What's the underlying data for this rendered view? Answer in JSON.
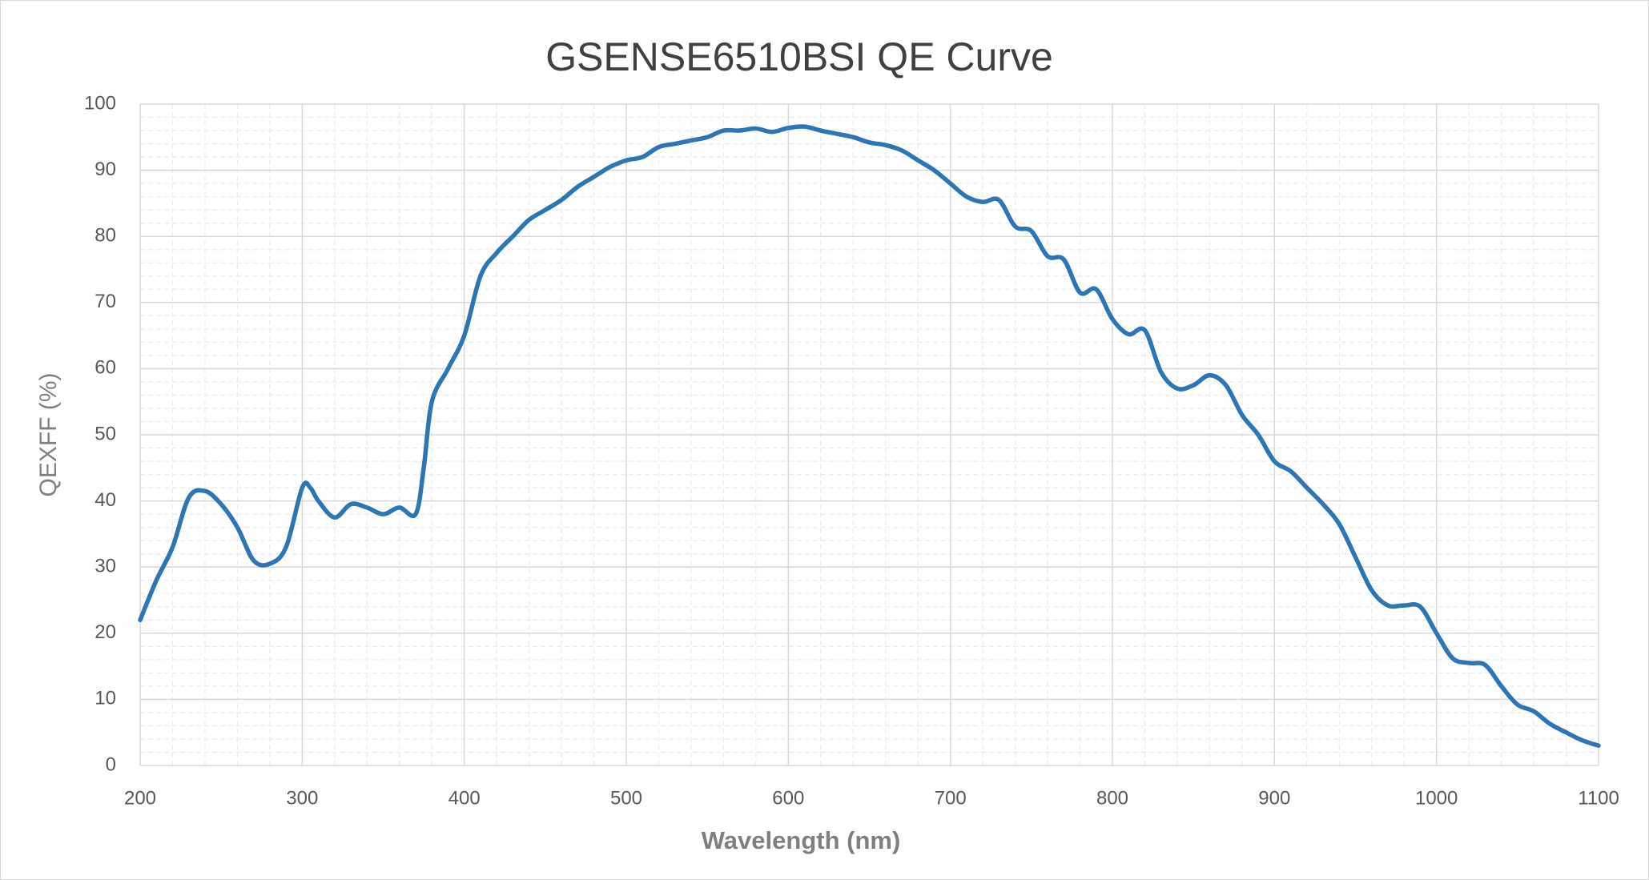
{
  "chart_data": {
    "type": "line",
    "title": "GSENSE6510BSI  QE Curve",
    "x_label": "Wavelength (nm)",
    "y_label": "QEXFF (%)",
    "x": [
      200,
      210,
      220,
      230,
      240,
      250,
      260,
      270,
      280,
      290,
      300,
      305,
      310,
      320,
      330,
      340,
      350,
      360,
      370,
      375,
      380,
      390,
      400,
      410,
      420,
      430,
      440,
      450,
      460,
      470,
      480,
      490,
      500,
      510,
      520,
      530,
      540,
      550,
      560,
      570,
      580,
      590,
      600,
      610,
      620,
      630,
      640,
      650,
      660,
      670,
      680,
      690,
      700,
      710,
      720,
      730,
      740,
      750,
      760,
      770,
      780,
      790,
      800,
      810,
      820,
      830,
      840,
      850,
      860,
      870,
      880,
      890,
      900,
      910,
      920,
      930,
      940,
      950,
      960,
      970,
      980,
      990,
      1000,
      1010,
      1020,
      1030,
      1040,
      1050,
      1060,
      1070,
      1080,
      1090,
      1100
    ],
    "series": [
      {
        "name": "QE",
        "color": "#2e75b6",
        "values": [
          22,
          28,
          33,
          40.5,
          41.5,
          39.5,
          36,
          31,
          30.5,
          33,
          42,
          42,
          40,
          37.5,
          39.5,
          39,
          38,
          39,
          38,
          45,
          55,
          60,
          65,
          74,
          77.5,
          80,
          82.5,
          84,
          85.5,
          87.5,
          89,
          90.5,
          91.5,
          92,
          93.5,
          94,
          94.5,
          95,
          96,
          96,
          96.3,
          95.8,
          96.4,
          96.6,
          96,
          95.5,
          95,
          94.2,
          93.8,
          93,
          91.5,
          90,
          88,
          86,
          85.2,
          85.5,
          81.5,
          80.8,
          77,
          76.5,
          71.5,
          72,
          67.5,
          65.2,
          65.8,
          59.5,
          57,
          57.5,
          59,
          57.5,
          53,
          50,
          46,
          44.5,
          42,
          39.5,
          36.5,
          31.5,
          26.5,
          24.2,
          24.2,
          24,
          20,
          16.2,
          15.5,
          15.2,
          12,
          9.2,
          8.2,
          6.3,
          5,
          3.8,
          3
        ]
      }
    ],
    "xlim": [
      200,
      1100
    ],
    "xticks": [
      200,
      300,
      400,
      500,
      600,
      700,
      800,
      900,
      1000,
      1100
    ],
    "ylim": [
      0,
      100
    ],
    "yticks": [
      0,
      10,
      20,
      30,
      40,
      50,
      60,
      70,
      80,
      90,
      100
    ],
    "grid": true,
    "minor_grid": true
  }
}
